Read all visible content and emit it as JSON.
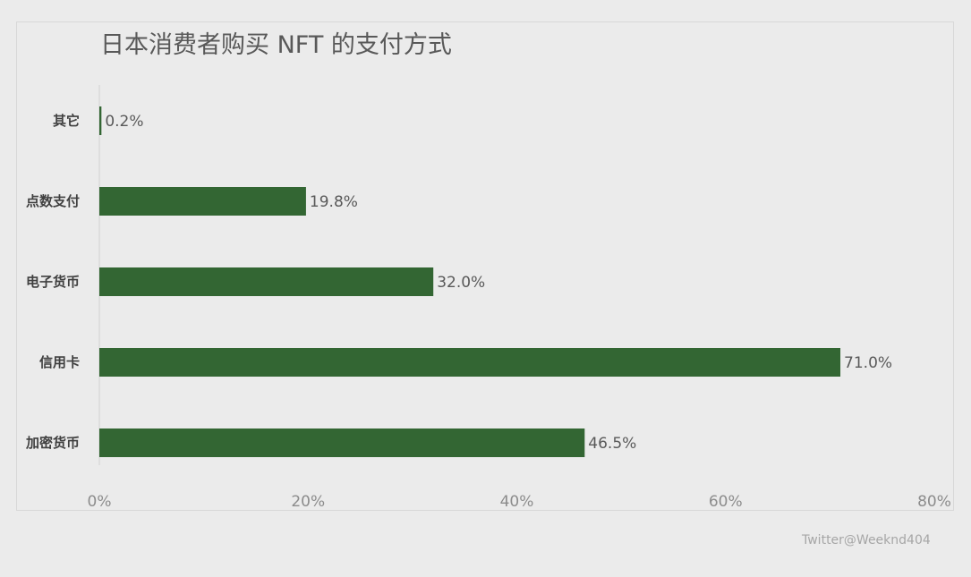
{
  "chart_data": {
    "type": "bar",
    "orientation": "horizontal",
    "title": "日本消费者购买 NFT 的支付方式",
    "categories": [
      "其它",
      "点数支付",
      "电子货币",
      "信用卡",
      "加密货币"
    ],
    "values": [
      0.2,
      19.8,
      32.0,
      71.0,
      46.5
    ],
    "value_labels": [
      "0.2%",
      "19.8%",
      "32.0%",
      "71.0%",
      "46.5%"
    ],
    "xticks": [
      "0%",
      "20%",
      "40%",
      "60%",
      "80%"
    ],
    "xlim": [
      0,
      80
    ],
    "xlabel": "",
    "ylabel": "",
    "grid": false,
    "legend": "none",
    "bar_color": "#336633"
  },
  "watermark": "Twitter@Weeknd404"
}
